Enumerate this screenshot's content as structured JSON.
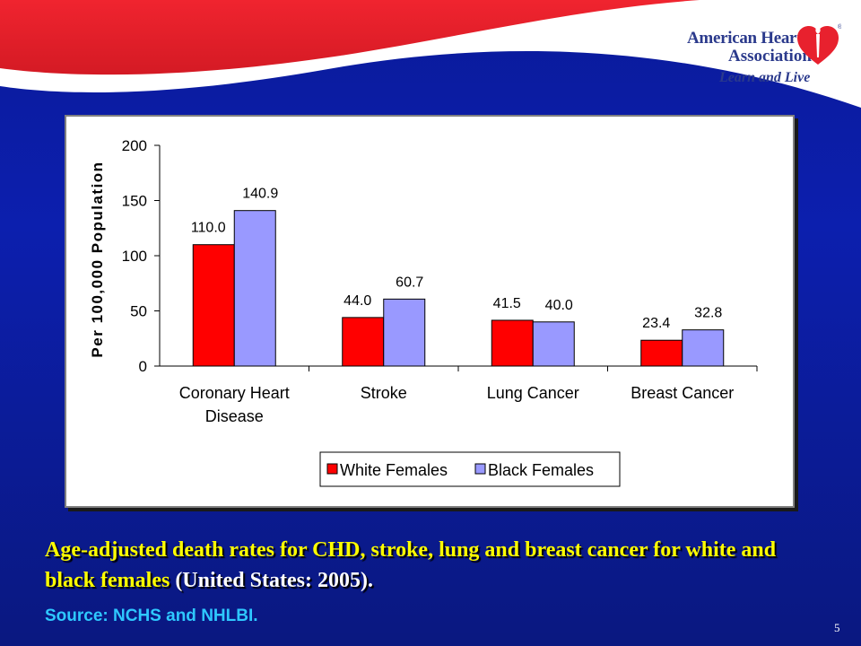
{
  "header": {
    "logo_line1": "American Heart",
    "logo_line2": "Association",
    "tagline": "Learn and Live",
    "registered_mark": "®",
    "colors": {
      "band_red": "#e8212e",
      "band_white": "#ffffff",
      "logo_blue": "#2b3a8c"
    }
  },
  "chart_data": {
    "type": "bar",
    "categories": [
      [
        "Coronary Heart",
        "Disease"
      ],
      [
        "Stroke"
      ],
      [
        "Lung Cancer"
      ],
      [
        "Breast Cancer"
      ]
    ],
    "series": [
      {
        "name": "White Females",
        "color": "#ff0000",
        "values": [
          110.0,
          44.0,
          41.5,
          23.4
        ],
        "labels": [
          "110.0",
          "44.0",
          "41.5",
          "23.4"
        ]
      },
      {
        "name": "Black Females",
        "color": "#9999ff",
        "values": [
          140.9,
          60.7,
          40.0,
          32.8
        ],
        "labels": [
          "140.9",
          "60.7",
          "40.0",
          "32.8"
        ]
      }
    ],
    "title": "",
    "xlabel": "",
    "ylabel": "Per 100,000 Population",
    "ylim": [
      0,
      200
    ],
    "yticks": [
      "0",
      "50",
      "100",
      "150",
      "200"
    ],
    "grid": false,
    "legend_position": "bottom"
  },
  "caption": {
    "main": "Age-adjusted death rates for CHD, stroke, lung and breast cancer for white and black females",
    "detail": " (United States: 2005).",
    "source": "Source: NCHS and NHLBI."
  },
  "slide_number": "5"
}
